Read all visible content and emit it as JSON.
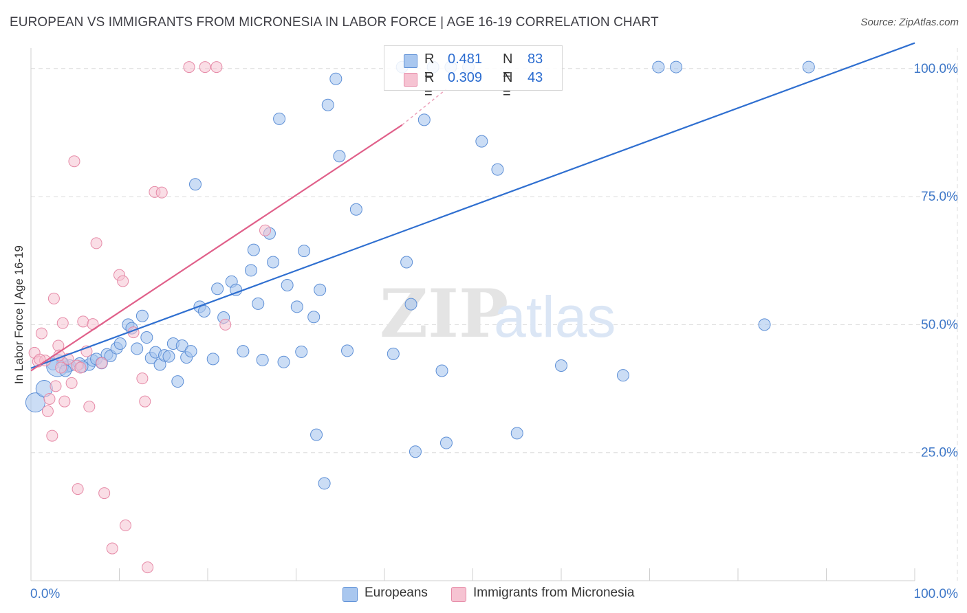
{
  "header": {
    "title": "EUROPEAN VS IMMIGRANTS FROM MICRONESIA IN LABOR FORCE | AGE 16-19 CORRELATION CHART",
    "source": "Source: ZipAtlas.com"
  },
  "colors": {
    "blue_fill": "#a9c7ef",
    "blue_stroke": "#5d8fd6",
    "blue_line": "#2f6fd0",
    "pink_fill": "#f6c3d2",
    "pink_stroke": "#e68aa7",
    "pink_line": "#e0608a",
    "axis_text": "#3f78c8",
    "grid": "#dcdcdc"
  },
  "legend_top": {
    "rows": [
      {
        "series": "Europeans",
        "r_label": "R =",
        "r_value": "0.481",
        "n_label": "N =",
        "n_value": "83"
      },
      {
        "series": "Immigrants from Micronesia",
        "r_label": "R =",
        "r_value": "0.309",
        "n_label": "N =",
        "n_value": "43"
      }
    ]
  },
  "chart_data": {
    "type": "scatter",
    "title": "EUROPEAN VS IMMIGRANTS FROM MICRONESIA IN LABOR FORCE | AGE 16-19 CORRELATION CHART",
    "xlabel": "",
    "ylabel": "In Labor Force | Age 16-19",
    "xlim": [
      0,
      100
    ],
    "ylim": [
      0,
      104
    ],
    "x_tick_labels": [
      "0.0%",
      "100.0%"
    ],
    "y_ticks": [
      25,
      50,
      75,
      100
    ],
    "y_tick_labels": [
      "25.0%",
      "50.0%",
      "75.0%",
      "100.0%"
    ],
    "grid": true,
    "watermark": "ZIPatlas",
    "legend": [
      "Europeans",
      "Immigrants from Micronesia"
    ],
    "series": [
      {
        "name": "Europeans",
        "color": "#a9c7ef",
        "trend": {
          "x0": 0,
          "y0": 41.5,
          "x1": 100,
          "y1": 105
        },
        "points": [
          [
            2.5,
            42.3
          ],
          [
            3.6,
            42.5
          ],
          [
            4.1,
            41.8
          ],
          [
            4.4,
            42.0
          ],
          [
            5.5,
            42.4
          ],
          [
            6.6,
            42.2
          ],
          [
            7.0,
            43.0
          ],
          [
            7.4,
            43.3
          ],
          [
            3.0,
            42.0
          ],
          [
            3.9,
            41.0
          ],
          [
            5.8,
            41.8
          ],
          [
            8.0,
            42.5
          ],
          [
            8.6,
            44.2
          ],
          [
            9.0,
            43.9
          ],
          [
            9.7,
            45.4
          ],
          [
            10.1,
            46.3
          ],
          [
            11.0,
            50.0
          ],
          [
            11.4,
            49.3
          ],
          [
            12.0,
            45.3
          ],
          [
            12.6,
            51.7
          ],
          [
            13.1,
            47.5
          ],
          [
            13.6,
            43.5
          ],
          [
            14.1,
            44.6
          ],
          [
            14.6,
            42.2
          ],
          [
            15.1,
            44.0
          ],
          [
            15.6,
            43.8
          ],
          [
            16.1,
            46.3
          ],
          [
            16.6,
            38.9
          ],
          [
            17.1,
            45.9
          ],
          [
            17.6,
            43.6
          ],
          [
            18.1,
            44.8
          ],
          [
            18.6,
            77.4
          ],
          [
            19.1,
            53.5
          ],
          [
            19.6,
            52.6
          ],
          [
            20.6,
            43.3
          ],
          [
            21.1,
            57.0
          ],
          [
            21.8,
            51.4
          ],
          [
            22.7,
            58.4
          ],
          [
            23.2,
            56.8
          ],
          [
            24.0,
            44.8
          ],
          [
            24.9,
            60.6
          ],
          [
            25.2,
            64.6
          ],
          [
            25.7,
            54.1
          ],
          [
            26.2,
            43.1
          ],
          [
            27.0,
            67.8
          ],
          [
            27.4,
            62.2
          ],
          [
            28.1,
            90.2
          ],
          [
            28.6,
            42.7
          ],
          [
            29.0,
            57.7
          ],
          [
            30.1,
            53.5
          ],
          [
            30.6,
            44.7
          ],
          [
            30.9,
            64.4
          ],
          [
            32.0,
            51.5
          ],
          [
            32.3,
            28.5
          ],
          [
            32.7,
            56.8
          ],
          [
            33.2,
            19.0
          ],
          [
            33.6,
            92.9
          ],
          [
            34.5,
            98.0
          ],
          [
            34.9,
            82.9
          ],
          [
            35.8,
            44.9
          ],
          [
            36.8,
            72.5
          ],
          [
            41.0,
            44.3
          ],
          [
            42.0,
            100.3
          ],
          [
            42.5,
            62.2
          ],
          [
            43.0,
            54.0
          ],
          [
            43.5,
            25.2
          ],
          [
            44.5,
            90.0
          ],
          [
            45.5,
            100.3
          ],
          [
            46.5,
            41.0
          ],
          [
            47.0,
            26.9
          ],
          [
            47.5,
            100.3
          ],
          [
            49.5,
            100.3
          ],
          [
            51.0,
            85.8
          ],
          [
            52.8,
            80.3
          ],
          [
            55.0,
            28.8
          ],
          [
            60.0,
            42.0
          ],
          [
            67.0,
            40.1
          ],
          [
            71.0,
            100.3
          ],
          [
            73.0,
            100.3
          ],
          [
            83.0,
            50.0
          ],
          [
            88.0,
            100.3
          ],
          [
            0.5,
            34.8
          ],
          [
            1.5,
            37.5
          ]
        ]
      },
      {
        "name": "Immigrants from Micronesia",
        "color": "#f6c3d2",
        "trend": {
          "x0": 0,
          "y0": 41,
          "x1": 42,
          "y1": 89
        },
        "trend_dashed": {
          "x0": 42,
          "y0": 89,
          "x1": 47,
          "y1": 96
        },
        "points": [
          [
            0.4,
            44.5
          ],
          [
            0.8,
            42.8
          ],
          [
            1.2,
            48.3
          ],
          [
            1.6,
            43.0
          ],
          [
            2.1,
            35.5
          ],
          [
            2.6,
            55.1
          ],
          [
            2.8,
            38.0
          ],
          [
            3.1,
            45.9
          ],
          [
            3.4,
            41.6
          ],
          [
            3.6,
            50.3
          ],
          [
            3.8,
            35.0
          ],
          [
            4.2,
            43.3
          ],
          [
            4.6,
            38.6
          ],
          [
            4.9,
            81.9
          ],
          [
            5.2,
            42.0
          ],
          [
            5.6,
            41.6
          ],
          [
            5.9,
            50.6
          ],
          [
            6.3,
            44.8
          ],
          [
            6.6,
            34.0
          ],
          [
            7.0,
            50.1
          ],
          [
            7.4,
            65.9
          ],
          [
            8.0,
            42.5
          ],
          [
            8.3,
            17.1
          ],
          [
            9.2,
            6.3
          ],
          [
            10.0,
            59.7
          ],
          [
            10.4,
            58.5
          ],
          [
            10.7,
            10.8
          ],
          [
            11.6,
            48.5
          ],
          [
            12.6,
            39.5
          ],
          [
            12.9,
            35.0
          ],
          [
            13.2,
            2.6
          ],
          [
            14.0,
            75.9
          ],
          [
            14.8,
            75.8
          ],
          [
            17.9,
            100.3
          ],
          [
            19.7,
            100.3
          ],
          [
            21.0,
            100.3
          ],
          [
            22.0,
            50.0
          ],
          [
            26.5,
            68.4
          ],
          [
            1.0,
            43.2
          ],
          [
            1.9,
            33.1
          ],
          [
            2.4,
            28.3
          ],
          [
            3.2,
            44.0
          ],
          [
            5.3,
            17.9
          ]
        ]
      }
    ]
  },
  "legend_bottom": {
    "items": [
      {
        "label": "Europeans"
      },
      {
        "label": "Immigrants from Micronesia"
      }
    ]
  }
}
